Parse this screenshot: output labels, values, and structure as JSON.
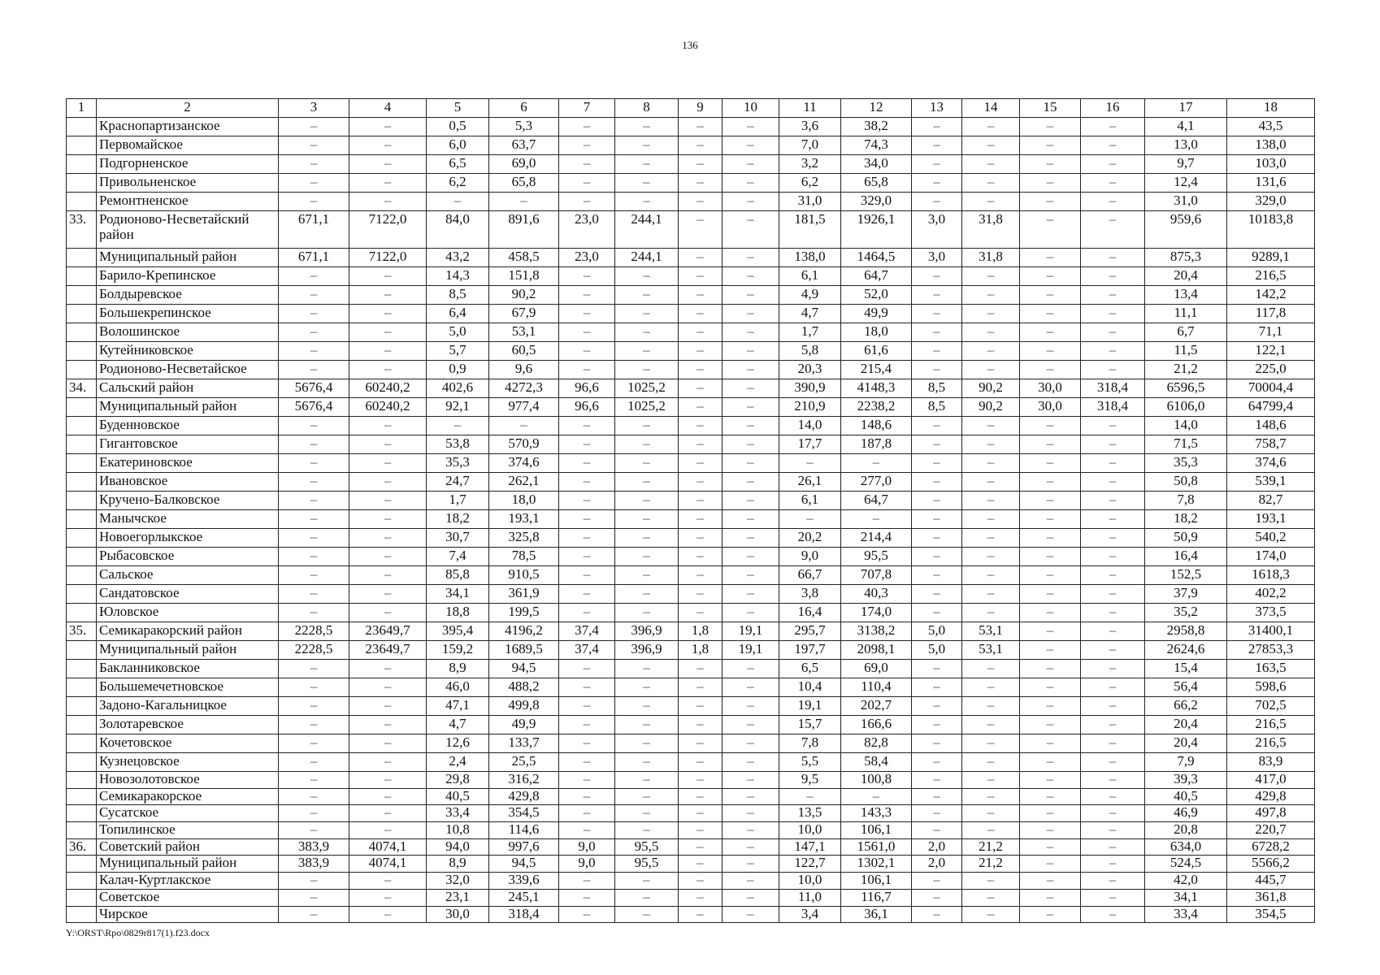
{
  "page_number": "136",
  "footer": "Y:\\ORST\\Rpo\\0829r817(1).f23.docx",
  "table": {
    "headers": [
      "1",
      "2",
      "3",
      "4",
      "5",
      "6",
      "7",
      "8",
      "9",
      "10",
      "11",
      "12",
      "13",
      "14",
      "15",
      "16",
      "17",
      "18"
    ],
    "rows": [
      {
        "num": "",
        "name": "Краснопартизанское",
        "values": [
          "–",
          "–",
          "0,5",
          "5,3",
          "–",
          "–",
          "–",
          "–",
          "3,6",
          "38,2",
          "–",
          "–",
          "–",
          "–",
          "4,1",
          "43,5"
        ]
      },
      {
        "num": "",
        "name": "Первомайское",
        "values": [
          "–",
          "–",
          "6,0",
          "63,7",
          "–",
          "–",
          "–",
          "–",
          "7,0",
          "74,3",
          "–",
          "–",
          "–",
          "–",
          "13,0",
          "138,0"
        ]
      },
      {
        "num": "",
        "name": "Подгорненское",
        "values": [
          "–",
          "–",
          "6,5",
          "69,0",
          "–",
          "–",
          "–",
          "–",
          "3,2",
          "34,0",
          "–",
          "–",
          "–",
          "–",
          "9,7",
          "103,0"
        ]
      },
      {
        "num": "",
        "name": "Привольненское",
        "values": [
          "–",
          "–",
          "6,2",
          "65,8",
          "–",
          "–",
          "–",
          "–",
          "6,2",
          "65,8",
          "–",
          "–",
          "–",
          "–",
          "12,4",
          "131,6"
        ]
      },
      {
        "num": "",
        "name": "Ремонтненское",
        "values": [
          "–",
          "–",
          "–",
          "–",
          "–",
          "–",
          "–",
          "–",
          "31,0",
          "329,0",
          "–",
          "–",
          "–",
          "–",
          "31,0",
          "329,0"
        ]
      },
      {
        "num": "33.",
        "name": "Родионово-Несветайский район",
        "values": [
          "671,1",
          "7122,0",
          "84,0",
          "891,6",
          "23,0",
          "244,1",
          "–",
          "–",
          "181,5",
          "1926,1",
          "3,0",
          "31,8",
          "–",
          "–",
          "959,6",
          "10183,8"
        ]
      },
      {
        "num": "",
        "name": "Муниципальный район",
        "values": [
          "671,1",
          "7122,0",
          "43,2",
          "458,5",
          "23,0",
          "244,1",
          "–",
          "–",
          "138,0",
          "1464,5",
          "3,0",
          "31,8",
          "–",
          "–",
          "875,3",
          "9289,1"
        ]
      },
      {
        "num": "",
        "name": "Барило-Крепинское",
        "values": [
          "–",
          "–",
          "14,3",
          "151,8",
          "–",
          "–",
          "–",
          "–",
          "6,1",
          "64,7",
          "–",
          "–",
          "–",
          "–",
          "20,4",
          "216,5"
        ]
      },
      {
        "num": "",
        "name": "Болдыревское",
        "values": [
          "–",
          "–",
          "8,5",
          "90,2",
          "–",
          "–",
          "–",
          "–",
          "4,9",
          "52,0",
          "–",
          "–",
          "–",
          "–",
          "13,4",
          "142,2"
        ]
      },
      {
        "num": "",
        "name": "Большекрепинское",
        "values": [
          "–",
          "–",
          "6,4",
          "67,9",
          "–",
          "–",
          "–",
          "–",
          "4,7",
          "49,9",
          "–",
          "–",
          "–",
          "–",
          "11,1",
          "117,8"
        ]
      },
      {
        "num": "",
        "name": "Волошинское",
        "values": [
          "–",
          "–",
          "5,0",
          "53,1",
          "–",
          "–",
          "–",
          "–",
          "1,7",
          "18,0",
          "–",
          "–",
          "–",
          "–",
          "6,7",
          "71,1"
        ]
      },
      {
        "num": "",
        "name": "Кутейниковское",
        "values": [
          "–",
          "–",
          "5,7",
          "60,5",
          "–",
          "–",
          "–",
          "–",
          "5,8",
          "61,6",
          "–",
          "–",
          "–",
          "–",
          "11,5",
          "122,1"
        ]
      },
      {
        "num": "",
        "name": "Родионово-Несветайское",
        "values": [
          "–",
          "–",
          "0,9",
          "9,6",
          "–",
          "–",
          "–",
          "–",
          "20,3",
          "215,4",
          "–",
          "–",
          "–",
          "–",
          "21,2",
          "225,0"
        ]
      },
      {
        "num": "34.",
        "name": "Сальский район",
        "values": [
          "5676,4",
          "60240,2",
          "402,6",
          "4272,3",
          "96,6",
          "1025,2",
          "–",
          "–",
          "390,9",
          "4148,3",
          "8,5",
          "90,2",
          "30,0",
          "318,4",
          "6596,5",
          "70004,4"
        ]
      },
      {
        "num": "",
        "name": "Муниципальный район",
        "values": [
          "5676,4",
          "60240,2",
          "92,1",
          "977,4",
          "96,6",
          "1025,2",
          "–",
          "–",
          "210,9",
          "2238,2",
          "8,5",
          "90,2",
          "30,0",
          "318,4",
          "6106,0",
          "64799,4"
        ]
      },
      {
        "num": "",
        "name": "Буденновское",
        "values": [
          "–",
          "–",
          "–",
          "–",
          "–",
          "–",
          "–",
          "–",
          "14,0",
          "148,6",
          "–",
          "–",
          "–",
          "–",
          "14,0",
          "148,6"
        ]
      },
      {
        "num": "",
        "name": "Гигантовское",
        "values": [
          "–",
          "–",
          "53,8",
          "570,9",
          "–",
          "–",
          "–",
          "–",
          "17,7",
          "187,8",
          "–",
          "–",
          "–",
          "–",
          "71,5",
          "758,7"
        ]
      },
      {
        "num": "",
        "name": "Екатериновское",
        "values": [
          "–",
          "–",
          "35,3",
          "374,6",
          "–",
          "–",
          "–",
          "–",
          "–",
          "–",
          "–",
          "–",
          "–",
          "–",
          "35,3",
          "374,6"
        ]
      },
      {
        "num": "",
        "name": "Ивановское",
        "values": [
          "–",
          "–",
          "24,7",
          "262,1",
          "–",
          "–",
          "–",
          "–",
          "26,1",
          "277,0",
          "–",
          "–",
          "–",
          "–",
          "50,8",
          "539,1"
        ]
      },
      {
        "num": "",
        "name": "Кручено-Балковское",
        "values": [
          "–",
          "–",
          "1,7",
          "18,0",
          "–",
          "–",
          "–",
          "–",
          "6,1",
          "64,7",
          "–",
          "–",
          "–",
          "–",
          "7,8",
          "82,7"
        ]
      },
      {
        "num": "",
        "name": "Манычское",
        "values": [
          "–",
          "–",
          "18,2",
          "193,1",
          "–",
          "–",
          "–",
          "–",
          "–",
          "–",
          "–",
          "–",
          "–",
          "–",
          "18,2",
          "193,1"
        ]
      },
      {
        "num": "",
        "name": "Новоегорлыкское",
        "values": [
          "–",
          "–",
          "30,7",
          "325,8",
          "–",
          "–",
          "–",
          "–",
          "20,2",
          "214,4",
          "–",
          "–",
          "–",
          "–",
          "50,9",
          "540,2"
        ]
      },
      {
        "num": "",
        "name": "Рыбасовское",
        "values": [
          "–",
          "–",
          "7,4",
          "78,5",
          "–",
          "–",
          "–",
          "–",
          "9,0",
          "95,5",
          "–",
          "–",
          "–",
          "–",
          "16,4",
          "174,0"
        ]
      },
      {
        "num": "",
        "name": "Сальское",
        "values": [
          "–",
          "–",
          "85,8",
          "910,5",
          "–",
          "–",
          "–",
          "–",
          "66,7",
          "707,8",
          "–",
          "–",
          "–",
          "–",
          "152,5",
          "1618,3"
        ]
      },
      {
        "num": "",
        "name": "Сандатовское",
        "values": [
          "–",
          "–",
          "34,1",
          "361,9",
          "–",
          "–",
          "–",
          "–",
          "3,8",
          "40,3",
          "–",
          "–",
          "–",
          "–",
          "37,9",
          "402,2"
        ]
      },
      {
        "num": "",
        "name": "Юловское",
        "values": [
          "–",
          "–",
          "18,8",
          "199,5",
          "–",
          "–",
          "–",
          "–",
          "16,4",
          "174,0",
          "–",
          "–",
          "–",
          "–",
          "35,2",
          "373,5"
        ]
      },
      {
        "num": "35.",
        "name": "Семикаракорский район",
        "values": [
          "2228,5",
          "23649,7",
          "395,4",
          "4196,2",
          "37,4",
          "396,9",
          "1,8",
          "19,1",
          "295,7",
          "3138,2",
          "5,0",
          "53,1",
          "–",
          "–",
          "2958,8",
          "31400,1"
        ]
      },
      {
        "num": "",
        "name": "Муниципальный район",
        "values": [
          "2228,5",
          "23649,7",
          "159,2",
          "1689,5",
          "37,4",
          "396,9",
          "1,8",
          "19,1",
          "197,7",
          "2098,1",
          "5,0",
          "53,1",
          "–",
          "–",
          "2624,6",
          "27853,3"
        ]
      },
      {
        "num": "",
        "name": "Бакланниковское",
        "values": [
          "–",
          "–",
          "8,9",
          "94,5",
          "–",
          "–",
          "–",
          "–",
          "6,5",
          "69,0",
          "–",
          "–",
          "–",
          "–",
          "15,4",
          "163,5"
        ]
      },
      {
        "num": "",
        "name": "Большемечетновское",
        "values": [
          "–",
          "–",
          "46,0",
          "488,2",
          "–",
          "–",
          "–",
          "–",
          "10,4",
          "110,4",
          "–",
          "–",
          "–",
          "–",
          "56,4",
          "598,6"
        ]
      },
      {
        "num": "",
        "name": "Задоно-Кагальницкое",
        "values": [
          "–",
          "–",
          "47,1",
          "499,8",
          "–",
          "–",
          "–",
          "–",
          "19,1",
          "202,7",
          "–",
          "–",
          "–",
          "–",
          "66,2",
          "702,5"
        ]
      },
      {
        "num": "",
        "name": "Золотаревское",
        "values": [
          "–",
          "–",
          "4,7",
          "49,9",
          "–",
          "–",
          "–",
          "–",
          "15,7",
          "166,6",
          "–",
          "–",
          "–",
          "–",
          "20,4",
          "216,5"
        ]
      },
      {
        "num": "",
        "name": "Кочетовское",
        "values": [
          "–",
          "–",
          "12,6",
          "133,7",
          "–",
          "–",
          "–",
          "–",
          "7,8",
          "82,8",
          "–",
          "–",
          "–",
          "–",
          "20,4",
          "216,5"
        ]
      },
      {
        "num": "",
        "name": "Кузнецовское",
        "values": [
          "–",
          "–",
          "2,4",
          "25,5",
          "–",
          "–",
          "–",
          "–",
          "5,5",
          "58,4",
          "–",
          "–",
          "–",
          "–",
          "7,9",
          "83,9"
        ]
      },
      {
        "num": "",
        "name": "Новозолотовское",
        "values": [
          "–",
          "–",
          "29,8",
          "316,2",
          "–",
          "–",
          "–",
          "–",
          "9,5",
          "100,8",
          "–",
          "–",
          "–",
          "–",
          "39,3",
          "417,0"
        ]
      },
      {
        "num": "",
        "name": "Семикаракорское",
        "values": [
          "–",
          "–",
          "40,5",
          "429,8",
          "–",
          "–",
          "–",
          "–",
          "–",
          "–",
          "–",
          "–",
          "–",
          "–",
          "40,5",
          "429,8"
        ]
      },
      {
        "num": "",
        "name": "Сусатское",
        "values": [
          "–",
          "–",
          "33,4",
          "354,5",
          "–",
          "–",
          "–",
          "–",
          "13,5",
          "143,3",
          "–",
          "–",
          "–",
          "–",
          "46,9",
          "497,8"
        ]
      },
      {
        "num": "",
        "name": "Топилинское",
        "values": [
          "–",
          "–",
          "10,8",
          "114,6",
          "–",
          "–",
          "–",
          "–",
          "10,0",
          "106,1",
          "–",
          "–",
          "–",
          "–",
          "20,8",
          "220,7"
        ]
      },
      {
        "num": "36.",
        "name": "Советский район",
        "values": [
          "383,9",
          "4074,1",
          "94,0",
          "997,6",
          "9,0",
          "95,5",
          "–",
          "–",
          "147,1",
          "1561,0",
          "2,0",
          "21,2",
          "–",
          "–",
          "634,0",
          "6728,2"
        ]
      },
      {
        "num": "",
        "name": "Муниципальный район",
        "values": [
          "383,9",
          "4074,1",
          "8,9",
          "94,5",
          "9,0",
          "95,5",
          "–",
          "–",
          "122,7",
          "1302,1",
          "2,0",
          "21,2",
          "–",
          "–",
          "524,5",
          "5566,2"
        ]
      },
      {
        "num": "",
        "name": "Калач-Куртлакское",
        "values": [
          "–",
          "–",
          "32,0",
          "339,6",
          "–",
          "–",
          "–",
          "–",
          "10,0",
          "106,1",
          "–",
          "–",
          "–",
          "–",
          "42,0",
          "445,7"
        ]
      },
      {
        "num": "",
        "name": "Советское",
        "values": [
          "–",
          "–",
          "23,1",
          "245,1",
          "–",
          "–",
          "–",
          "–",
          "11,0",
          "116,7",
          "–",
          "–",
          "–",
          "–",
          "34,1",
          "361,8"
        ]
      },
      {
        "num": "",
        "name": "Чирское",
        "values": [
          "–",
          "–",
          "30,0",
          "318,4",
          "–",
          "–",
          "–",
          "–",
          "3,4",
          "36,1",
          "–",
          "–",
          "–",
          "–",
          "33,4",
          "354,5"
        ]
      }
    ]
  }
}
